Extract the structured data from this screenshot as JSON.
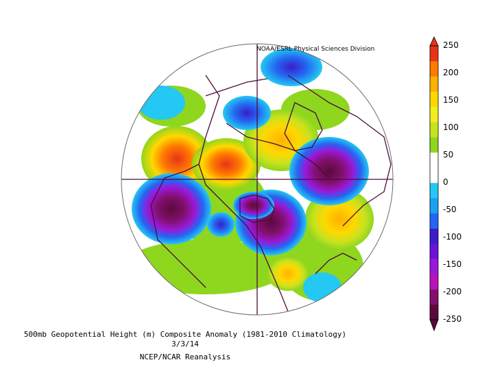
{
  "map": {
    "credit": "NOAA/ESRL Physical Sciences Division",
    "caption_line1": "500mb Geopotential Height (m) Composite Anomaly (1981-2010 Climatology)",
    "caption_line2": "3/3/14",
    "caption_line3": "NCEP/NCAR Reanalysis"
  },
  "colorbar": {
    "labels": [
      "250",
      "200",
      "150",
      "100",
      "50",
      "0",
      "-50",
      "-100",
      "-150",
      "-200",
      "-250"
    ],
    "colors": [
      "#e8331a",
      "#ff7a00",
      "#ffb000",
      "#ffd800",
      "#f2ee1e",
      "#c9e21e",
      "#8fd61e",
      "#ffffff",
      "#ffffff",
      "#24c8f2",
      "#1ca0f2",
      "#2466f2",
      "#3a1ec8",
      "#6a14d8",
      "#9a18d8",
      "#b814b8",
      "#82106e",
      "#5a0a3c"
    ]
  }
}
